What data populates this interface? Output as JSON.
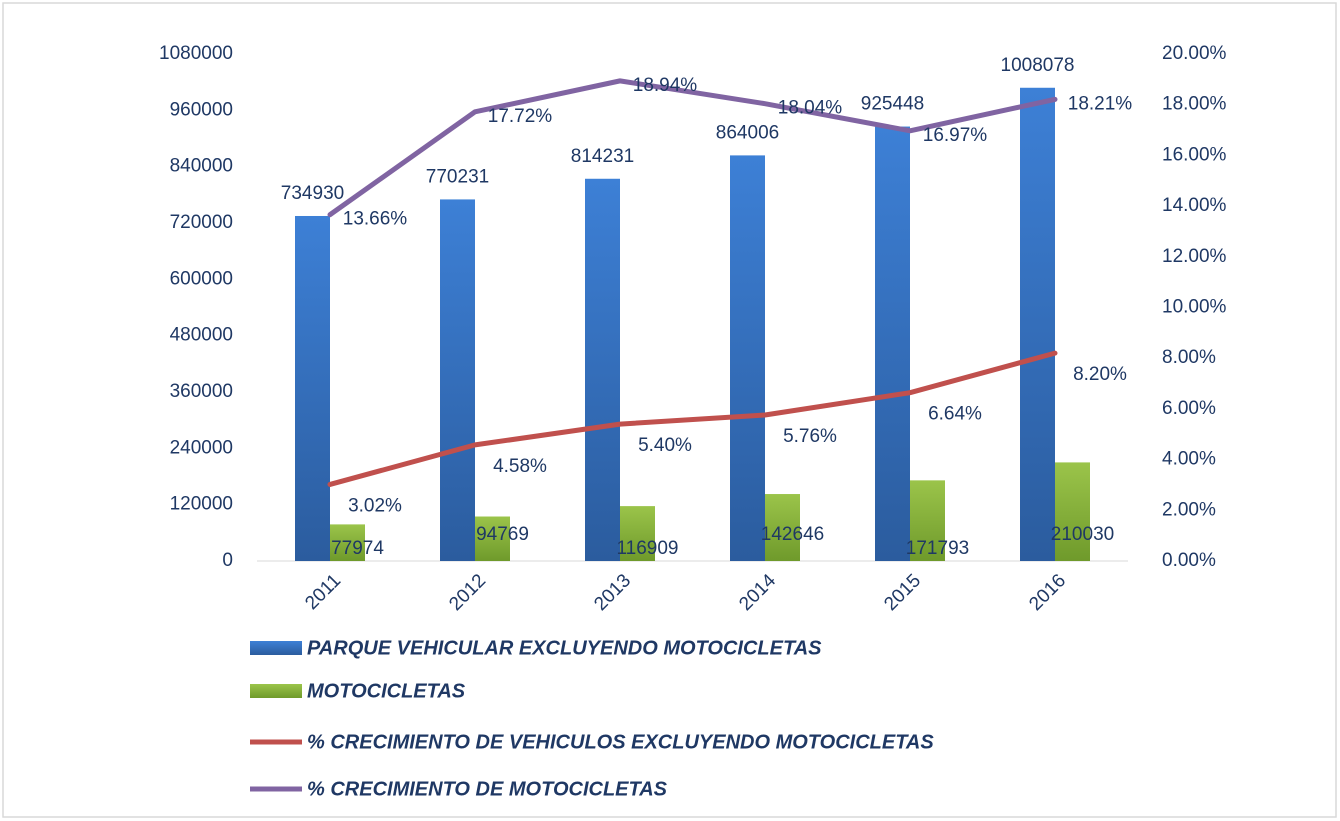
{
  "chart_data": {
    "type": "combo",
    "categories": [
      "2011",
      "2012",
      "2013",
      "2014",
      "2015",
      "2016"
    ],
    "series": [
      {
        "name": "PARQUE VEHICULAR EXCLUYENDO MOTOCICLETAS",
        "type": "bar",
        "color": "#3a78c9",
        "values": [
          734930,
          770231,
          814231,
          864006,
          925448,
          1008078
        ]
      },
      {
        "name": "MOTOCICLETAS",
        "type": "bar",
        "color": "#8cb63c",
        "values": [
          77974,
          94769,
          116909,
          142646,
          171793,
          210030
        ]
      },
      {
        "name": "% CRECIMIENTO DE VEHICULOS EXCLUYENDO MOTOCICLETAS",
        "type": "line",
        "axis": "y2",
        "color": "#c0504d",
        "values": [
          3.02,
          4.58,
          5.4,
          5.76,
          6.64,
          8.2
        ],
        "value_labels": [
          "3.02%",
          "4.58%",
          "5.40%",
          "5.76%",
          "6.64%",
          "8.20%"
        ]
      },
      {
        "name": "% CRECIMIENTO DE MOTOCICLETAS",
        "type": "line",
        "axis": "y2",
        "color": "#8064a2",
        "values": [
          13.66,
          17.72,
          18.94,
          18.04,
          16.97,
          18.21
        ],
        "value_labels": [
          "13.66%",
          "17.72%",
          "18.94%",
          "18.04%",
          "16.97%",
          "18.21%"
        ]
      }
    ],
    "ylim": [
      0,
      1080000
    ],
    "yticks": [
      0,
      120000,
      240000,
      360000,
      480000,
      600000,
      720000,
      840000,
      960000,
      1080000
    ],
    "y2lim": [
      0,
      20
    ],
    "y2ticks": [
      {
        "value": 0,
        "label": "0.00%"
      },
      {
        "value": 2,
        "label": "2.00%"
      },
      {
        "value": 4,
        "label": "4.00%"
      },
      {
        "value": 6,
        "label": "6.00%"
      },
      {
        "value": 8,
        "label": "8.00%"
      },
      {
        "value": 10,
        "label": "10.00%"
      },
      {
        "value": 12,
        "label": "12.00%"
      },
      {
        "value": 14,
        "label": "14.00%"
      },
      {
        "value": 16,
        "label": "16.00%"
      },
      {
        "value": 18,
        "label": "18.00%"
      },
      {
        "value": 20,
        "label": "20.00%"
      }
    ],
    "legend": "bottom"
  }
}
